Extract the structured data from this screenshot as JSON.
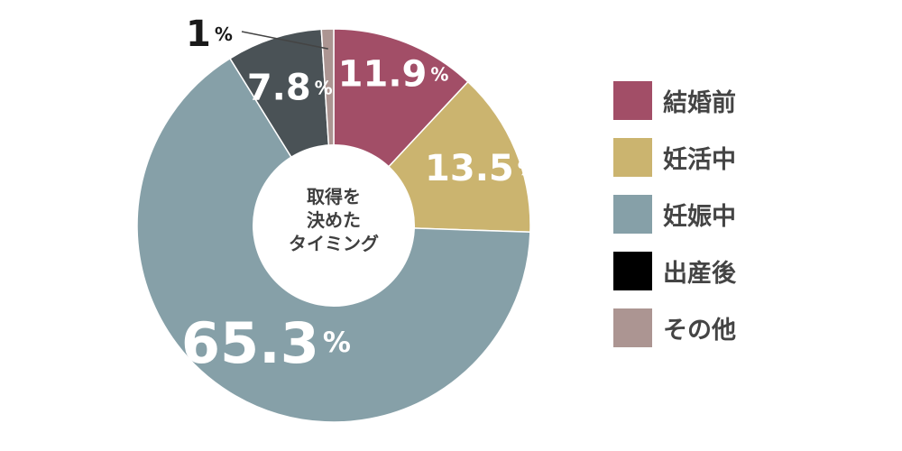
{
  "chart_data": {
    "type": "pie",
    "center_label": [
      "取得を",
      "決めた",
      "タイミング"
    ],
    "categories": [
      "結婚前",
      "妊活中",
      "妊娠中",
      "出産後",
      "その他"
    ],
    "values": [
      11.9,
      13.5,
      65.3,
      7.8,
      1
    ],
    "value_labels": [
      "11.9",
      "13.5",
      "65.3",
      "7.8",
      "1"
    ],
    "unit": "%",
    "colors": [
      "#a24e67",
      "#cbb46f",
      "#86a0a8",
      "#4a5256",
      "#ac9592"
    ],
    "legend_colors": [
      "#a24e67",
      "#cbb46f",
      "#86a0a8",
      "#000000",
      "#ac9592"
    ],
    "legend_position": "right"
  }
}
